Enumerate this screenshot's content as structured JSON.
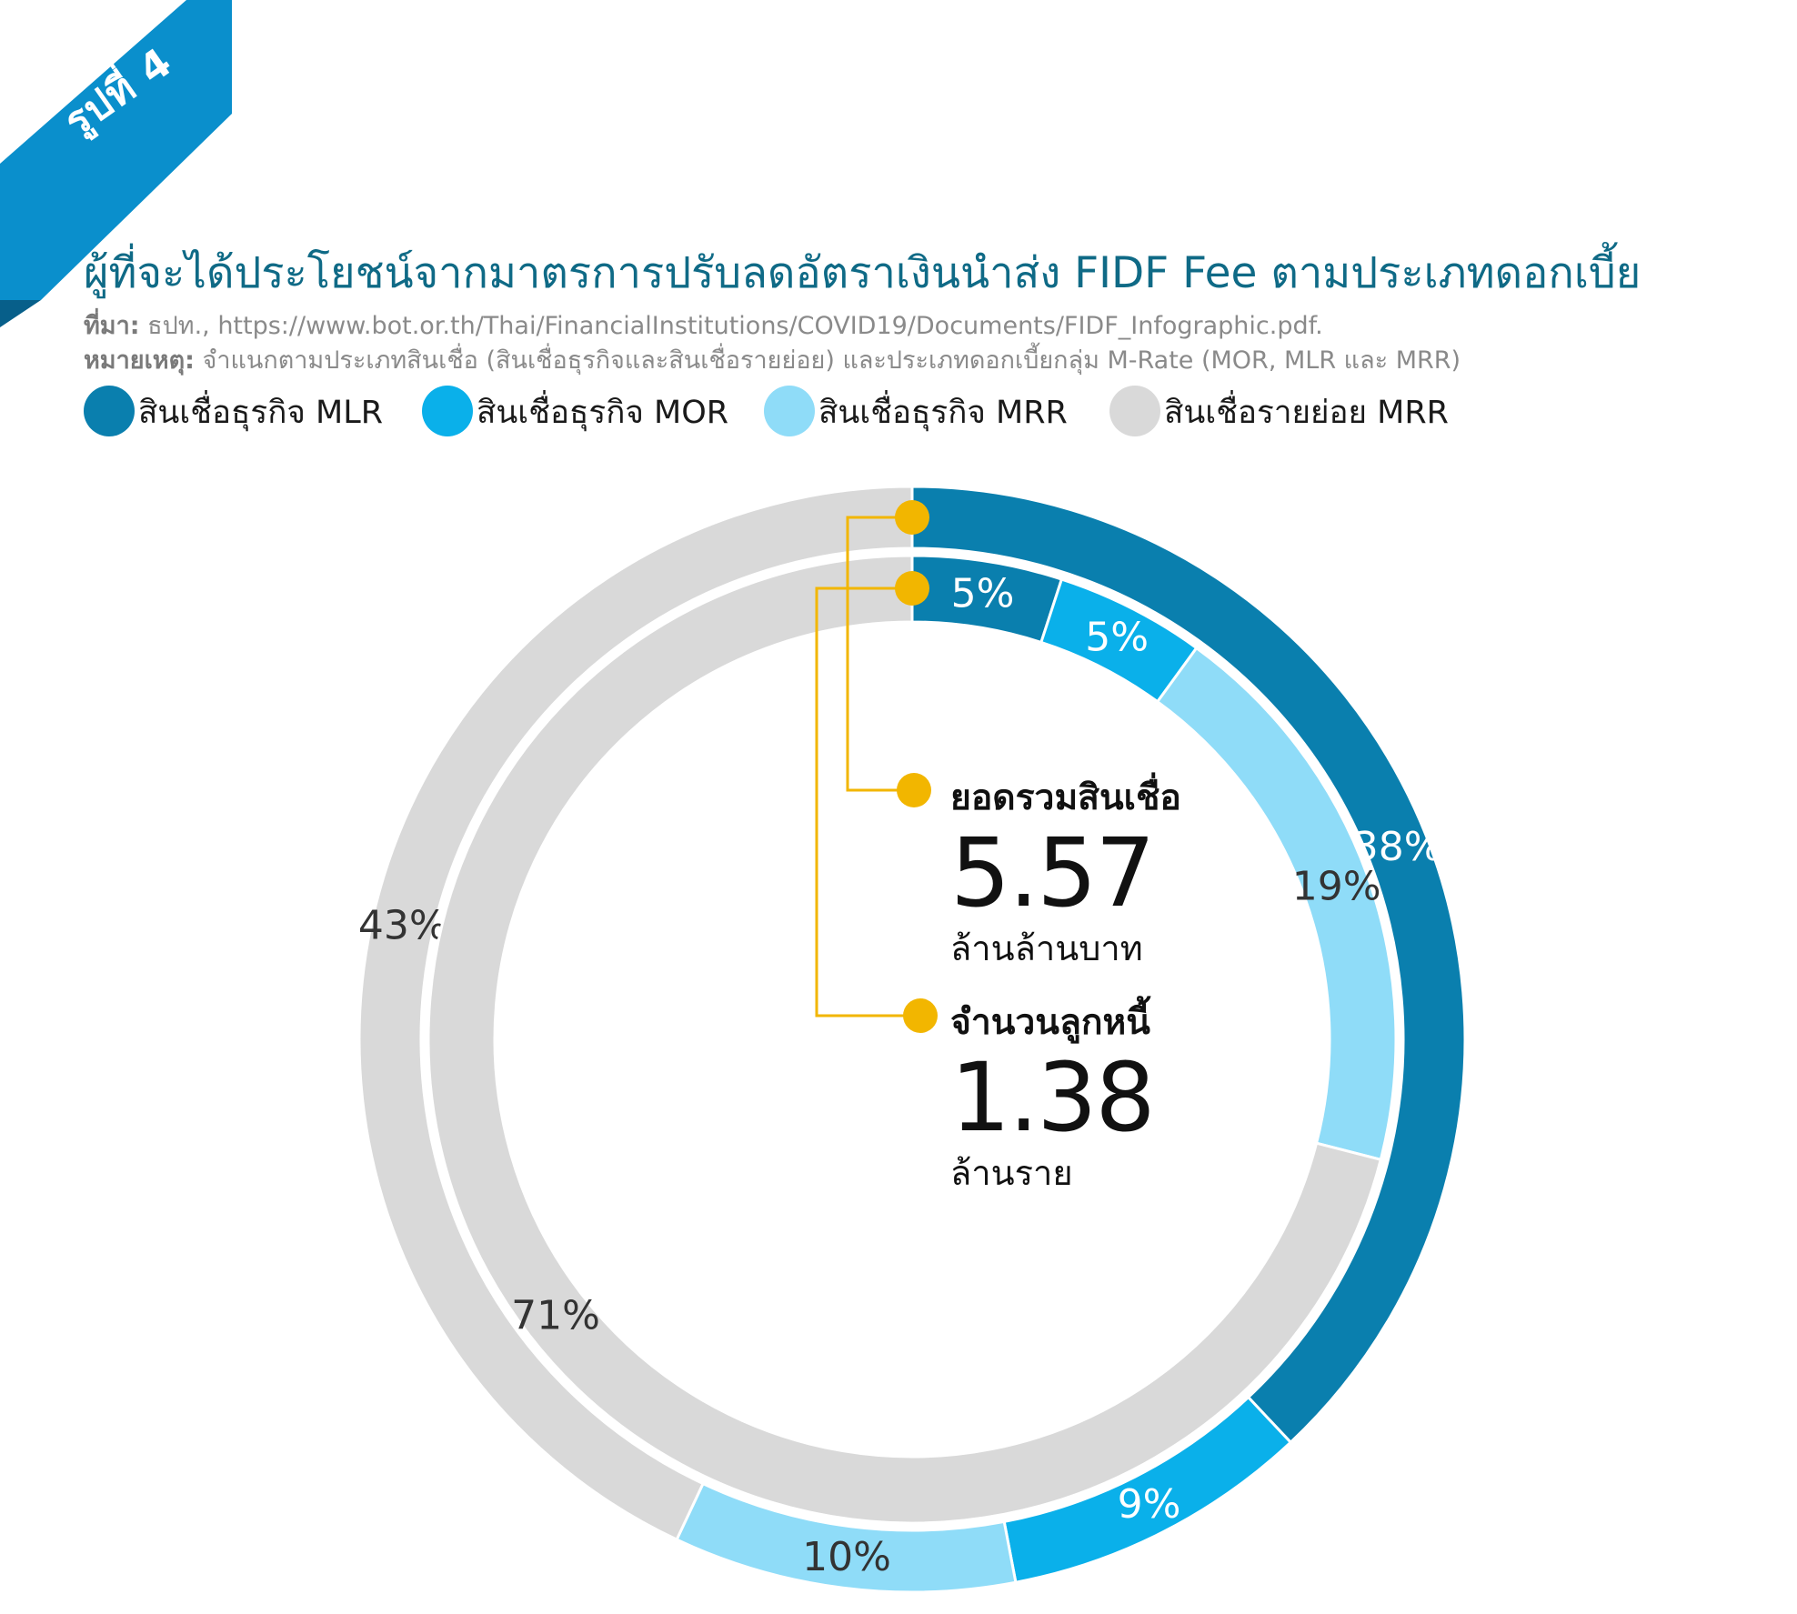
{
  "figure_label": "รูปที่ 4",
  "title": "ผู้ที่จะได้ประโยชน์จากมาตรการปรับลดอัตราเงินนำส่ง FIDF Fee ตามประเภทดอกเบี้ย",
  "source": {
    "label": "ที่มา:",
    "text": "ธปท., https://www.bot.or.th/Thai/FinancialInstitutions/COVID19/Documents/FIDF_Infographic.pdf."
  },
  "note": {
    "label": "หมายเหตุ:",
    "text": "จำแนกตามประเภทสินเชื่อ (สินเชื่อธุรกิจและสินเชื่อรายย่อย) และประเภทดอกเบี้ยกลุ่ม M-Rate (MOR, MLR และ MRR)"
  },
  "colors": {
    "brand": "#0a7fae",
    "mlr": "#0a7fae",
    "mor": "#0ab0ea",
    "mrr_business": "#8fdcf8",
    "mrr_retail": "#d9d9d9",
    "connector": "#f2b600"
  },
  "center": {
    "total_loans": {
      "heading": "ยอดรวมสินเชื่อ",
      "value": "5.57",
      "unit": "ล้านล้านบาท"
    },
    "debtors": {
      "heading": "จำนวนลูกหนี้",
      "value": "1.38",
      "unit": "ล้านราย"
    }
  },
  "chart_data": {
    "type": "pie",
    "variant": "double-donut",
    "series_names": [
      "สินเชื่อธุรกิจ MLR",
      "สินเชื่อธุรกิจ MOR",
      "สินเชื่อธุรกิจ MRR",
      "สินเชื่อรายย่อย MRR"
    ],
    "rings": [
      {
        "ring": "outer",
        "measure": "ยอดรวมสินเชื่อ",
        "values": [
          38,
          9,
          10,
          43
        ],
        "labels": [
          "38%",
          "9%",
          "10%",
          "43%"
        ]
      },
      {
        "ring": "inner",
        "measure": "จำนวนลูกหนี้",
        "values": [
          5,
          5,
          19,
          71
        ],
        "labels": [
          "5%",
          "5%",
          "19%",
          "71%"
        ]
      }
    ]
  }
}
